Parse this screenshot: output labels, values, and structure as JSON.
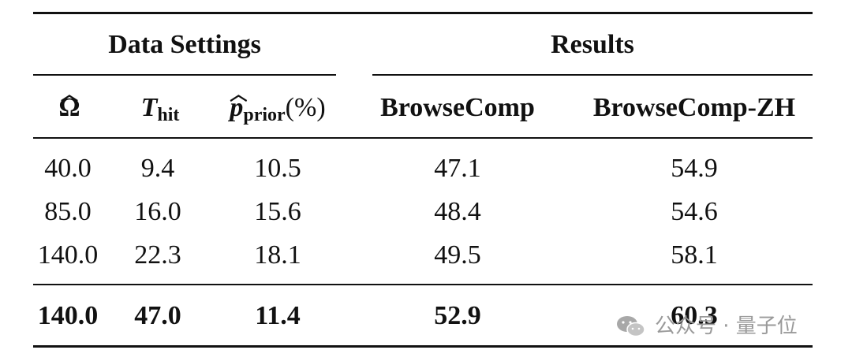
{
  "header": {
    "group_data_settings": "Data Settings",
    "group_results": "Results",
    "col_omega": "Ω",
    "col_t_main": "T",
    "col_t_sub": "hit",
    "col_p_main": "p",
    "col_p_sub": "prior",
    "col_p_unit": "(%)",
    "col_browsecomp": "BrowseComp",
    "col_browsecomp_zh": "BrowseComp-ZH"
  },
  "rows": [
    {
      "omega": "40.0",
      "t_hit": "9.4",
      "p_prior": "10.5",
      "browsecomp": "47.1",
      "browsecomp_zh": "54.9"
    },
    {
      "omega": "85.0",
      "t_hit": "16.0",
      "p_prior": "15.6",
      "browsecomp": "48.4",
      "browsecomp_zh": "54.6"
    },
    {
      "omega": "140.0",
      "t_hit": "22.3",
      "p_prior": "18.1",
      "browsecomp": "49.5",
      "browsecomp_zh": "58.1"
    }
  ],
  "final_row": {
    "omega": "140.0",
    "t_hit": "47.0",
    "p_prior": "11.4",
    "browsecomp": "52.9",
    "browsecomp_zh": "60.3"
  },
  "watermark": {
    "text": "公众号 · 量子位"
  }
}
